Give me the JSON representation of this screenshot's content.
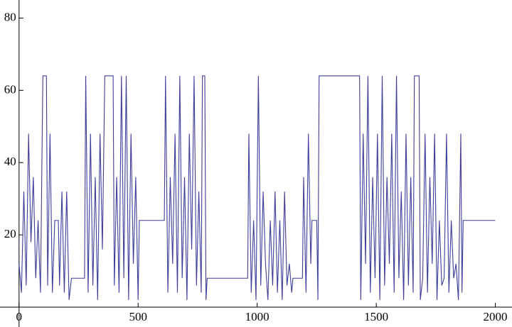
{
  "chart_data": {
    "type": "line",
    "color": "#3f3d99",
    "x": [
      0,
      10,
      20,
      30,
      40,
      50,
      60,
      70,
      80,
      90,
      100,
      115,
      120,
      130,
      140,
      150,
      165,
      170,
      180,
      190,
      200,
      210,
      220,
      275,
      280,
      290,
      300,
      310,
      320,
      330,
      340,
      350,
      360,
      395,
      400,
      410,
      420,
      430,
      440,
      450,
      460,
      470,
      480,
      490,
      500,
      505,
      610,
      615,
      625,
      635,
      645,
      655,
      665,
      675,
      685,
      695,
      705,
      715,
      725,
      735,
      745,
      755,
      765,
      770,
      780,
      785,
      790,
      960,
      965,
      975,
      985,
      995,
      1005,
      1015,
      1025,
      1035,
      1045,
      1055,
      1065,
      1075,
      1085,
      1095,
      1105,
      1115,
      1125,
      1135,
      1145,
      1150,
      1190,
      1195,
      1205,
      1215,
      1225,
      1230,
      1250,
      1255,
      1260,
      1430,
      1435,
      1445,
      1455,
      1465,
      1475,
      1485,
      1495,
      1505,
      1515,
      1525,
      1535,
      1545,
      1555,
      1565,
      1575,
      1585,
      1595,
      1605,
      1615,
      1625,
      1635,
      1645,
      1655,
      1660,
      1680,
      1685,
      1695,
      1705,
      1715,
      1725,
      1735,
      1745,
      1755,
      1765,
      1775,
      1785,
      1795,
      1805,
      1815,
      1825,
      1835,
      1845,
      1855,
      1860,
      1865,
      2000
    ],
    "values": [
      12,
      4,
      32,
      6,
      48,
      18,
      36,
      8,
      24,
      4,
      64,
      64,
      6,
      48,
      4,
      24,
      24,
      6,
      32,
      4,
      32,
      2,
      8,
      8,
      64,
      4,
      48,
      6,
      36,
      2,
      48,
      16,
      64,
      64,
      6,
      36,
      4,
      64,
      8,
      64,
      2,
      48,
      12,
      36,
      2,
      24,
      24,
      64,
      4,
      36,
      12,
      48,
      4,
      64,
      8,
      36,
      2,
      48,
      16,
      64,
      6,
      32,
      4,
      64,
      64,
      2,
      8,
      8,
      48,
      4,
      24,
      2,
      64,
      6,
      32,
      12,
      2,
      24,
      6,
      32,
      4,
      24,
      2,
      32,
      6,
      12,
      4,
      8,
      8,
      36,
      4,
      48,
      12,
      24,
      24,
      2,
      64,
      64,
      2,
      48,
      12,
      64,
      4,
      36,
      8,
      48,
      2,
      64,
      6,
      36,
      12,
      48,
      4,
      64,
      8,
      32,
      2,
      48,
      6,
      36,
      4,
      64,
      64,
      2,
      8,
      48,
      4,
      36,
      12,
      48,
      2,
      24,
      6,
      8,
      48,
      4,
      24,
      8,
      12,
      2,
      48,
      4,
      24,
      24
    ],
    "xlim": [
      -80,
      2070
    ],
    "ylim": [
      0,
      85
    ],
    "xticks": [
      0,
      500,
      1000,
      1500,
      2000
    ],
    "yticks": [
      20,
      40,
      60,
      80
    ]
  }
}
